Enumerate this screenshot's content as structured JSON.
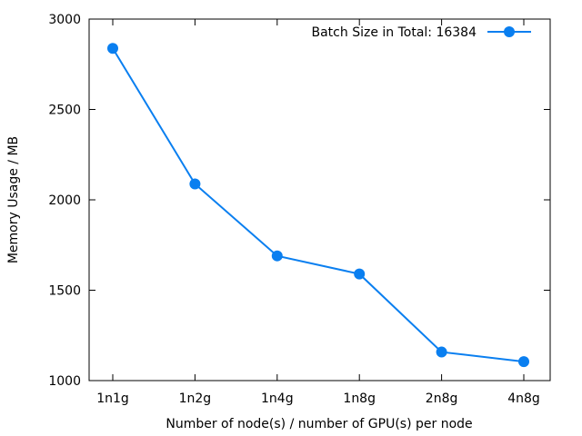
{
  "chart_data": {
    "type": "line",
    "title": "",
    "xlabel": "Number of node(s) / number of GPU(s) per node",
    "ylabel": "Memory Usage / MB",
    "categories": [
      "1n1g",
      "1n2g",
      "1n4g",
      "1n8g",
      "2n8g",
      "4n8g"
    ],
    "series": [
      {
        "name": "Batch Size in Total: 16384",
        "values": [
          2838,
          2088,
          1690,
          1590,
          1158,
          1105
        ],
        "color": "#0a7ff0",
        "marker": "circle"
      }
    ],
    "ylim": [
      1000,
      3000
    ],
    "yticks": [
      1000,
      1500,
      2000,
      2500,
      3000
    ],
    "grid": false,
    "legend_position": "top-right"
  }
}
